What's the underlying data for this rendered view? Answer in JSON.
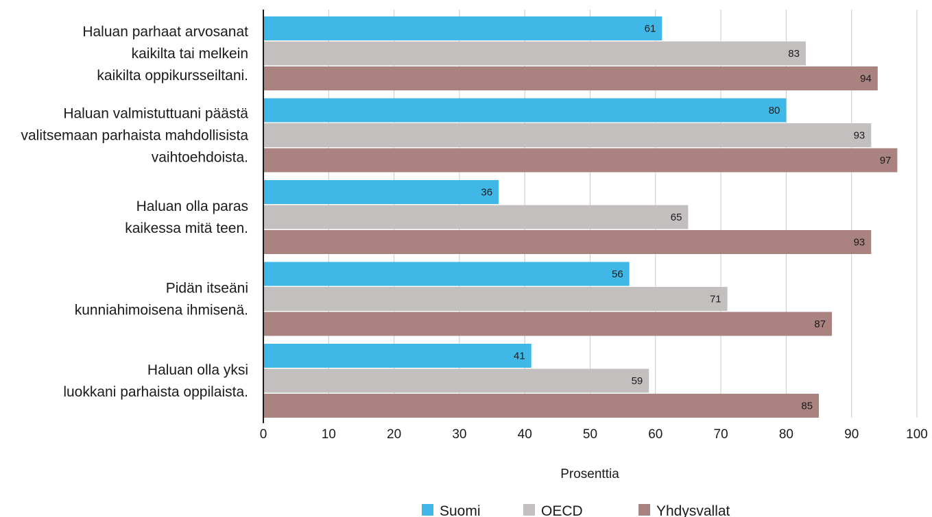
{
  "chart_data": {
    "type": "bar",
    "orientation": "horizontal",
    "title": "",
    "xlabel": "Prosenttia",
    "ylabel": "",
    "xlim": [
      0,
      100
    ],
    "ticks": [
      0,
      10,
      20,
      30,
      40,
      50,
      60,
      70,
      80,
      90,
      100
    ],
    "grid": true,
    "legend_position": "bottom",
    "categories": [
      [
        "Haluan parhaat arvosanat",
        "kaikilta tai melkein",
        "kaikilta oppikursseiltani."
      ],
      [
        "Haluan valmistuttuani päästä",
        "valitsemaan parhaista mahdollisista",
        "vaihtoehdoista."
      ],
      [
        "Haluan olla paras",
        "kaikessa mitä teen."
      ],
      [
        "Pidän itseäni",
        "kunniahimoisena ihmisenä."
      ],
      [
        "Haluan olla yksi",
        "luokkani parhaista oppilaista."
      ]
    ],
    "series": [
      {
        "name": "Suomi",
        "color": "#3fb8e8",
        "values": [
          61,
          80,
          36,
          56,
          41
        ]
      },
      {
        "name": "OECD",
        "color": "#c4bfbf",
        "values": [
          83,
          93,
          65,
          71,
          59
        ]
      },
      {
        "name": "Yhdysvallat",
        "color": "#aa8280",
        "values": [
          94,
          97,
          93,
          87,
          85
        ]
      }
    ]
  }
}
